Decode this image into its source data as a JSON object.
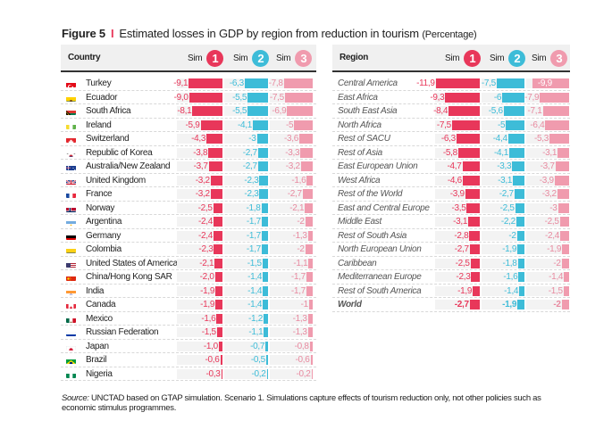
{
  "title": {
    "figure": "Figure 5",
    "separator": "I",
    "text": "Estimated losses in GDP by region from reduction in tourism",
    "unit": "(Percentage)"
  },
  "colors": {
    "sim1": "#e8375a",
    "sim2": "#3dbcd8",
    "sim3": "#f09bae",
    "sim3_text": "#e88aa0"
  },
  "source": {
    "label": "Source:",
    "text": "UNCTAD based on GTAP simulation. Scenario 1. Simulations capture effects of tourism reduction only, not other policies such as economic stimulus programmes."
  },
  "chart_data": [
    {
      "type": "bar",
      "orientation": "horizontal",
      "title": "Estimated losses in GDP by country",
      "category_header": "Country",
      "series_headers": [
        {
          "prefix": "Sim",
          "number": "1"
        },
        {
          "prefix": "Sim",
          "number": "2"
        },
        {
          "prefix": "Sim",
          "number": "3"
        }
      ],
      "categories": [
        "Turkey",
        "Ecuador",
        "South Africa",
        "Ireland",
        "Switzerland",
        "Republic of Korea",
        "Australia/New Zealand",
        "United Kingdom",
        "France",
        "Norway",
        "Argentina",
        "Germany",
        "Colombia",
        "United States of America",
        "China/Hong Kong SAR",
        "India",
        "Canada",
        "Mexico",
        "Russian Federation",
        "Japan",
        "Brazil",
        "Nigeria"
      ],
      "flags": [
        "turkey-flag-icon",
        "ecuador-flag-icon",
        "south-africa-flag-icon",
        "ireland-flag-icon",
        "switzerland-flag-icon",
        "korea-flag-icon",
        "australia-flag-icon",
        "uk-flag-icon",
        "france-flag-icon",
        "norway-flag-icon",
        "argentina-flag-icon",
        "germany-flag-icon",
        "colombia-flag-icon",
        "usa-flag-icon",
        "china-flag-icon",
        "india-flag-icon",
        "canada-flag-icon",
        "mexico-flag-icon",
        "russia-flag-icon",
        "japan-flag-icon",
        "brazil-flag-icon",
        "nigeria-flag-icon"
      ],
      "series": [
        {
          "name": "Sim 1",
          "values": [
            -9.1,
            -9.0,
            -8.1,
            -5.9,
            -4.3,
            -3.8,
            -3.7,
            -3.2,
            -3.2,
            -2.5,
            -2.4,
            -2.4,
            -2.3,
            -2.1,
            -2.0,
            -1.9,
            -1.9,
            -1.6,
            -1.5,
            -1.0,
            -0.6,
            -0.3
          ],
          "labels": [
            "-9,1",
            "-9,0",
            "-8,1",
            "-5,9",
            "-4,3",
            "-3,8",
            "-3,7",
            "-3,2",
            "-3,2",
            "-2,5",
            "-2,4",
            "-2,4",
            "-2,3",
            "-2,1",
            "-2,0",
            "-1,9",
            "-1,9",
            "-1,6",
            "-1,5",
            "-1,0",
            "-0,6",
            "-0,3"
          ]
        },
        {
          "name": "Sim 2",
          "values": [
            -6.3,
            -5.5,
            -5.5,
            -4.1,
            -3,
            -2.7,
            -2.7,
            -2.3,
            -2.3,
            -1.8,
            -1.7,
            -1.7,
            -1.7,
            -1.5,
            -1.4,
            -1.4,
            -1.4,
            -1.2,
            -1.1,
            -0.7,
            -0.5,
            -0.2
          ],
          "labels": [
            "-6,3",
            "-5,5",
            "-5,5",
            "-4,1",
            "-3",
            "-2,7",
            "-2,7",
            "-2,3",
            "-2,3",
            "-1,8",
            "-1,7",
            "-1,7",
            "-1,7",
            "-1,5",
            "-1,4",
            "-1,4",
            "-1,4",
            "-1,2",
            "-1,1",
            "-0,7",
            "-0,5",
            "-0,2"
          ]
        },
        {
          "name": "Sim 3",
          "values": [
            -7.8,
            -7.5,
            -6.9,
            -5,
            -3.6,
            -3.3,
            -3.2,
            -1.6,
            -2.7,
            -2.1,
            -2,
            -1.3,
            -2,
            -1.1,
            -1.7,
            -1.7,
            -1,
            -1.3,
            -1.3,
            -0.8,
            -0.6,
            -0.2
          ],
          "labels": [
            "-7,8",
            "-7,5",
            "-6,9",
            "-5",
            "-3,6",
            "-3,3",
            "-3,2",
            "-1,6",
            "-2,7",
            "-2,1",
            "-2",
            "-1,3",
            "-2",
            "-1,1",
            "-1,7",
            "-1,7",
            "-1",
            "-1,3",
            "-1,3",
            "-0,8",
            "-0,6",
            "-0,2"
          ]
        }
      ],
      "xlabel": "",
      "ylabel": "",
      "unit": "Percentage"
    },
    {
      "type": "bar",
      "orientation": "horizontal",
      "title": "Estimated losses in GDP by region",
      "category_header": "Region",
      "series_headers": [
        {
          "prefix": "Sim",
          "number": "1"
        },
        {
          "prefix": "Sim",
          "number": "2"
        },
        {
          "prefix": "Sim",
          "number": "3"
        }
      ],
      "categories": [
        "Central America",
        "East Africa",
        "South East Asia",
        "North Africa",
        "Rest of SACU",
        "Rest of Asia",
        "East European Union",
        "West Africa",
        "Rest of the World",
        "East and Central Europe",
        "Middle East",
        "Rest of South Asia",
        "North European Union",
        "Caribbean",
        "Mediterranean Europe",
        "Rest of South America",
        "World"
      ],
      "emphasized": [
        "World"
      ],
      "series": [
        {
          "name": "Sim 1",
          "values": [
            -11.9,
            -9.3,
            -8.4,
            -7.5,
            -6.3,
            -5.8,
            -4.7,
            -4.6,
            -3.9,
            -3.5,
            -3.1,
            -2.8,
            -2.7,
            -2.5,
            -2.3,
            -1.9,
            -2.7
          ],
          "labels": [
            "-11,9",
            "-9,3",
            "-8,4",
            "-7,5",
            "-6,3",
            "-5,8",
            "-4,7",
            "-4,6",
            "-3,9",
            "-3,5",
            "-3,1",
            "-2,8",
            "-2,7",
            "-2,5",
            "-2,3",
            "-1,9",
            "-2,7"
          ]
        },
        {
          "name": "Sim 2",
          "values": [
            -7.5,
            -6,
            -5.6,
            -5,
            -4.4,
            -4.1,
            -3.3,
            -3.1,
            -2.7,
            -2.5,
            -2.2,
            -2,
            -1.9,
            -1.8,
            -1.6,
            -1.4,
            -1.9
          ],
          "labels": [
            "-7,5",
            "-6",
            "-5,6",
            "-5",
            "-4,4",
            "-4,1",
            "-3,3",
            "-3,1",
            "-2,7",
            "-2,5",
            "-2,2",
            "-2",
            "-1,9",
            "-1,8",
            "-1,6",
            "-1,4",
            "-1,9"
          ]
        },
        {
          "name": "Sim 3",
          "values": [
            -9.9,
            -7.9,
            -7.1,
            -6.4,
            -5.3,
            -3.1,
            -3.7,
            -3.9,
            -3.2,
            -3,
            -2.5,
            -2.4,
            -1.9,
            -2,
            -1.4,
            -1.5,
            -2
          ],
          "labels": [
            "-9,9",
            "-7,9",
            "-7,1",
            "-6,4",
            "-5,3",
            "-3,1",
            "-3,7",
            "-3,9",
            "-3,2",
            "-3",
            "-2,5",
            "-2,4",
            "-1,9",
            "-2",
            "-1,4",
            "-1,5",
            "-2"
          ]
        }
      ],
      "xlabel": "",
      "ylabel": "",
      "unit": "Percentage"
    }
  ]
}
